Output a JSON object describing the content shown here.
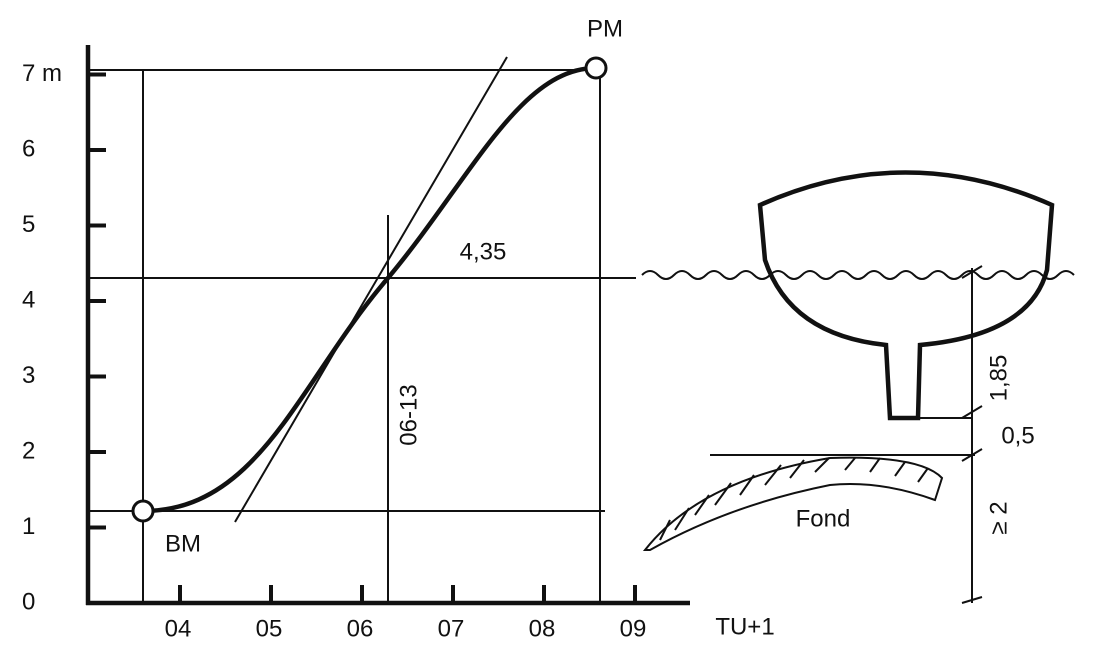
{
  "axis": {
    "y_labels": [
      "0",
      "1",
      "2",
      "3",
      "4",
      "5",
      "6",
      "7 m"
    ],
    "x_labels": [
      "04",
      "05",
      "06",
      "07",
      "08",
      "09"
    ],
    "x_unit": "TU+1"
  },
  "labels": {
    "high": "PM",
    "low": "BM",
    "height": "4,35",
    "time": "06-13",
    "fond": "Fond",
    "draft": "1,85",
    "clearance": "0,5",
    "depth_min": "≥ 2"
  }
}
